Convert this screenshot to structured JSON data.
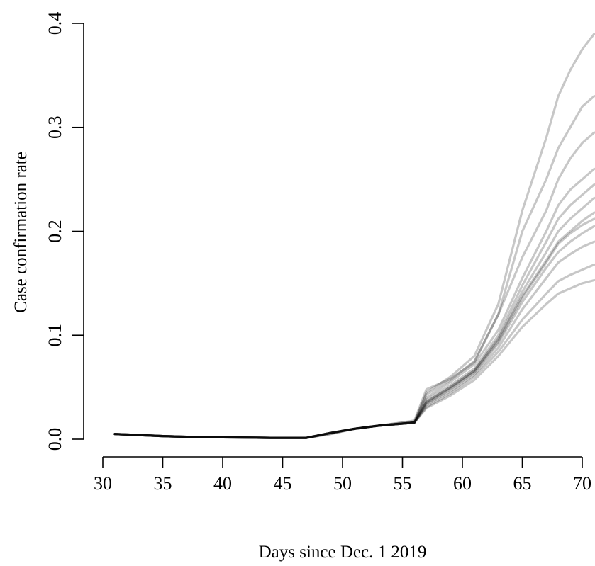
{
  "chart_data": {
    "type": "line",
    "title": "",
    "xlabel": "Days since Dec. 1 2019",
    "ylabel": "Case confirmation rate",
    "xlim": [
      30,
      71
    ],
    "ylim": [
      0,
      0.4
    ],
    "x_ticks": [
      "30",
      "35",
      "40",
      "45",
      "50",
      "55",
      "60",
      "65",
      "70"
    ],
    "y_ticks": [
      "0.0",
      "0.1",
      "0.2",
      "0.3",
      "0.4"
    ],
    "grid": false,
    "legend": "none",
    "line_color": "#000000",
    "x": [
      31,
      33,
      35,
      38,
      41,
      44,
      47,
      49,
      51,
      53,
      55,
      56,
      57,
      59,
      61,
      63,
      65,
      67,
      68,
      69,
      70,
      71
    ],
    "series": [
      {
        "values": [
          0.005,
          0.004,
          0.003,
          0.002,
          0.0017,
          0.0013,
          0.0013,
          0.005,
          0.01,
          0.013,
          0.016,
          0.018,
          0.048,
          0.058,
          0.074,
          0.12,
          0.2,
          0.25,
          0.28,
          0.3,
          0.32,
          0.33
        ]
      },
      {
        "values": [
          0.005,
          0.004,
          0.003,
          0.002,
          0.0017,
          0.0013,
          0.0013,
          0.005,
          0.01,
          0.013,
          0.016,
          0.017,
          0.043,
          0.057,
          0.075,
          0.12,
          0.175,
          0.22,
          0.25,
          0.27,
          0.285,
          0.295
        ]
      },
      {
        "values": [
          0.005,
          0.004,
          0.003,
          0.002,
          0.0017,
          0.0013,
          0.0013,
          0.006,
          0.01,
          0.013,
          0.015,
          0.016,
          0.04,
          0.055,
          0.072,
          0.105,
          0.155,
          0.2,
          0.225,
          0.24,
          0.25,
          0.26
        ]
      },
      {
        "values": [
          0.005,
          0.004,
          0.003,
          0.002,
          0.0017,
          0.0013,
          0.0013,
          0.006,
          0.01,
          0.013,
          0.015,
          0.016,
          0.038,
          0.052,
          0.068,
          0.1,
          0.148,
          0.19,
          0.212,
          0.225,
          0.235,
          0.245
        ]
      },
      {
        "values": [
          0.005,
          0.004,
          0.003,
          0.002,
          0.0017,
          0.0013,
          0.0013,
          0.006,
          0.01,
          0.013,
          0.015,
          0.016,
          0.036,
          0.05,
          0.066,
          0.097,
          0.142,
          0.18,
          0.2,
          0.212,
          0.222,
          0.232
        ]
      },
      {
        "values": [
          0.005,
          0.004,
          0.003,
          0.002,
          0.0017,
          0.0013,
          0.0013,
          0.006,
          0.01,
          0.013,
          0.015,
          0.016,
          0.036,
          0.05,
          0.066,
          0.096,
          0.138,
          0.172,
          0.19,
          0.2,
          0.21,
          0.218
        ]
      },
      {
        "values": [
          0.005,
          0.004,
          0.003,
          0.002,
          0.0017,
          0.0013,
          0.0013,
          0.006,
          0.01,
          0.013,
          0.015,
          0.016,
          0.034,
          0.048,
          0.064,
          0.092,
          0.132,
          0.165,
          0.18,
          0.19,
          0.198,
          0.205
        ]
      },
      {
        "values": [
          0.005,
          0.004,
          0.003,
          0.002,
          0.0017,
          0.0013,
          0.0013,
          0.006,
          0.01,
          0.013,
          0.015,
          0.016,
          0.033,
          0.046,
          0.062,
          0.088,
          0.125,
          0.155,
          0.17,
          0.178,
          0.185,
          0.19
        ]
      },
      {
        "values": [
          0.005,
          0.004,
          0.003,
          0.002,
          0.0017,
          0.0013,
          0.0013,
          0.006,
          0.01,
          0.013,
          0.015,
          0.016,
          0.031,
          0.044,
          0.06,
          0.084,
          0.115,
          0.14,
          0.152,
          0.158,
          0.163,
          0.168
        ]
      },
      {
        "values": [
          0.005,
          0.004,
          0.003,
          0.002,
          0.0017,
          0.0013,
          0.0013,
          0.006,
          0.01,
          0.013,
          0.015,
          0.016,
          0.03,
          0.042,
          0.057,
          0.08,
          0.108,
          0.13,
          0.14,
          0.145,
          0.15,
          0.153
        ]
      },
      {
        "values": [
          0.005,
          0.004,
          0.003,
          0.002,
          0.0017,
          0.0013,
          0.0013,
          0.006,
          0.01,
          0.013,
          0.015,
          0.016,
          0.045,
          0.06,
          0.08,
          0.13,
          0.22,
          0.29,
          0.33,
          0.355,
          0.375,
          0.39
        ]
      },
      {
        "values": [
          0.005,
          0.004,
          0.003,
          0.002,
          0.0017,
          0.0013,
          0.0013,
          0.006,
          0.01,
          0.013,
          0.015,
          0.016,
          0.035,
          0.049,
          0.065,
          0.094,
          0.136,
          0.17,
          0.188,
          0.198,
          0.206,
          0.212
        ]
      }
    ]
  }
}
